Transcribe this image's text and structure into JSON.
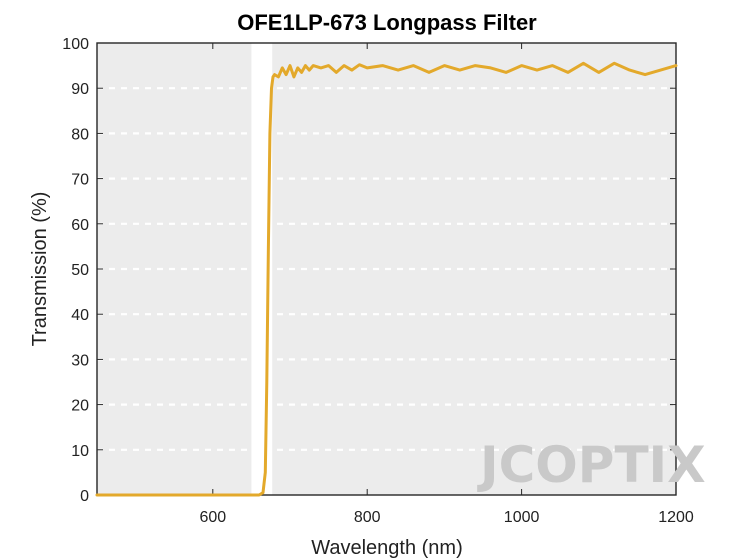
{
  "chart_data": {
    "type": "line",
    "title": "OFE1LP-673 Longpass Filter",
    "xlabel": "Wavelength (nm)",
    "ylabel": "Transmission (%)",
    "xlim": [
      450,
      1200
    ],
    "ylim": [
      0,
      100
    ],
    "xticks": [
      600,
      800,
      1000,
      1200
    ],
    "yticks": [
      0,
      10,
      20,
      30,
      40,
      50,
      60,
      70,
      80,
      90,
      100
    ],
    "grid": "horizontal dashed",
    "background_color": "#ececec",
    "transmission_band": [
      650,
      677
    ],
    "transmission_band_color": "#ffffff",
    "series": [
      {
        "color": "#e3a92b",
        "x": [
          450,
          500,
          550,
          600,
          640,
          660,
          665,
          668,
          670,
          672,
          674,
          676,
          678,
          680,
          685,
          690,
          695,
          700,
          705,
          710,
          715,
          720,
          725,
          730,
          740,
          750,
          760,
          770,
          780,
          790,
          800,
          820,
          840,
          860,
          880,
          900,
          920,
          940,
          960,
          980,
          1000,
          1020,
          1040,
          1060,
          1080,
          1100,
          1120,
          1140,
          1160,
          1180,
          1200
        ],
        "y": [
          0,
          0,
          0,
          0,
          0,
          0,
          0.5,
          5,
          25,
          55,
          80,
          90,
          92.5,
          93,
          92.5,
          94.5,
          93,
          95,
          92.5,
          94.5,
          93.5,
          95,
          94,
          95,
          94.5,
          95,
          93.5,
          95,
          94,
          95.2,
          94.5,
          95,
          94,
          95,
          93.5,
          95,
          94,
          95,
          94.5,
          93.5,
          95,
          94,
          95,
          93.5,
          95.5,
          93.5,
          95.5,
          94,
          93,
          94,
          95
        ]
      }
    ],
    "watermark": "JCOPTIX"
  }
}
